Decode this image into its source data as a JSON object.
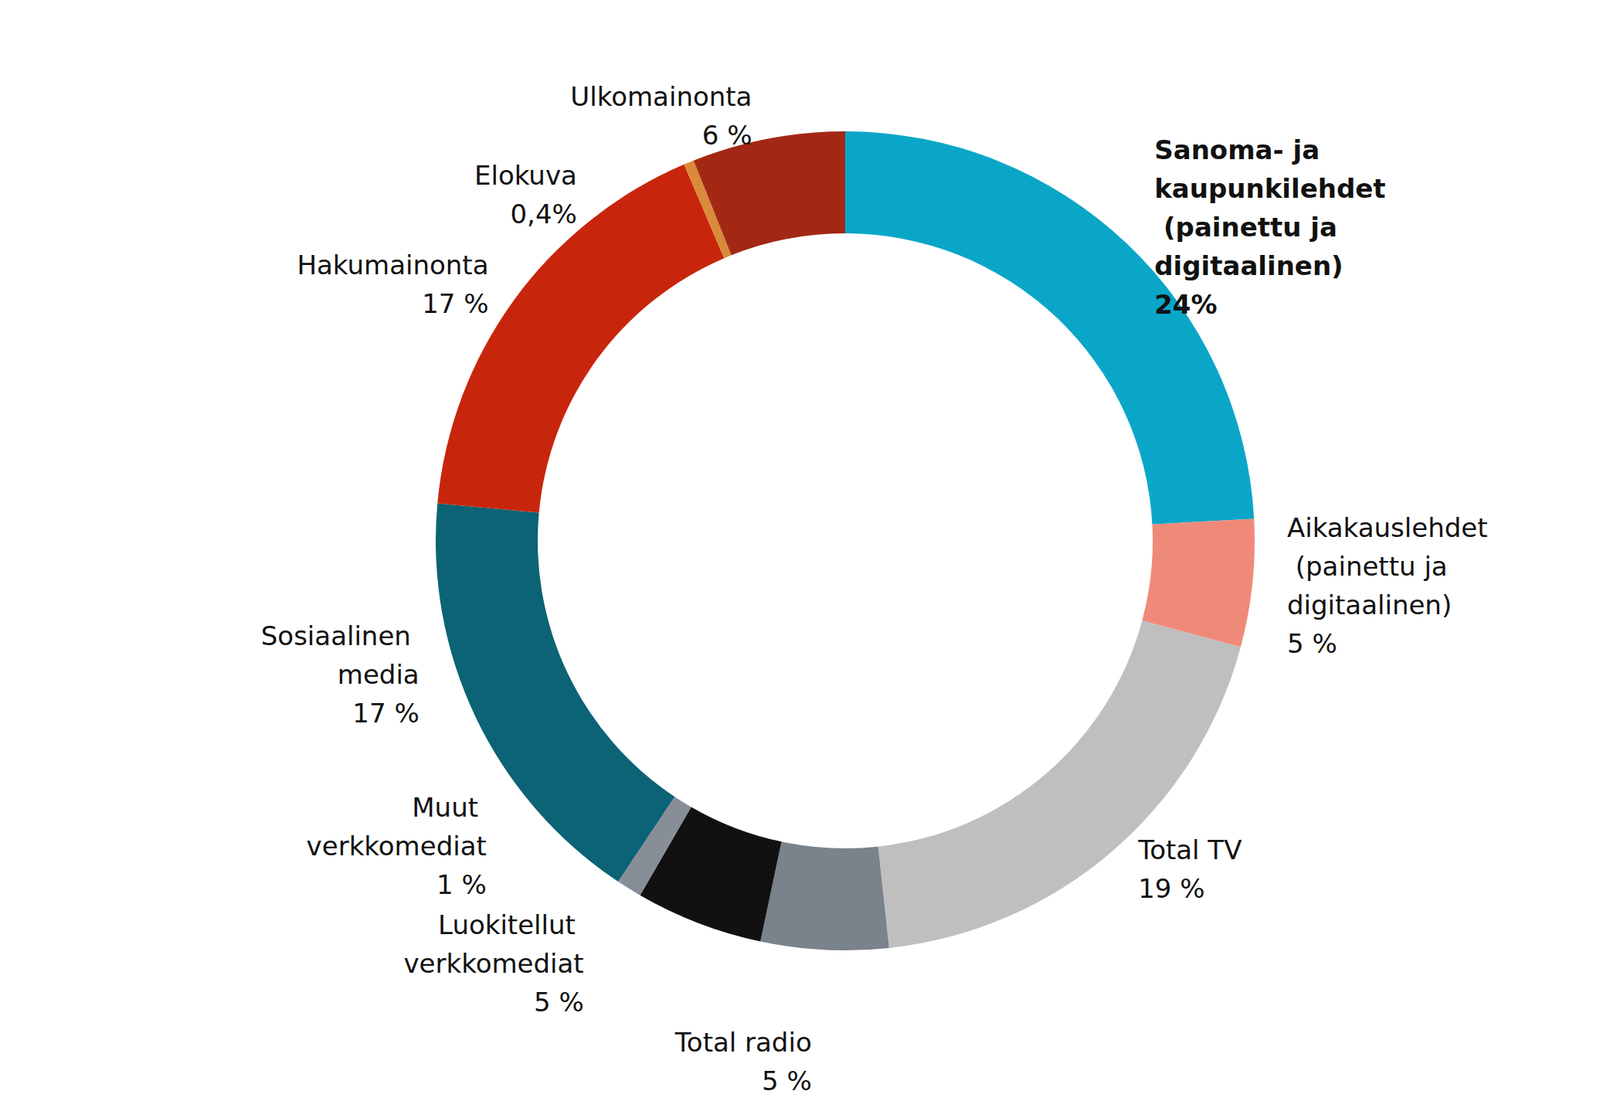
{
  "chart_data": {
    "type": "donut",
    "categories": [
      "Sanoma- ja kaupunkilehdet (painettu ja digitaalinen)",
      "Aikakauslehdet (painettu ja digitaalinen)",
      "Total TV",
      "Total radio",
      "Luokitellut verkkomediat",
      "Muut verkkomediat",
      "Sosiaalinen media",
      "Hakumainonta",
      "Elokuva",
      "Ulkomainonta"
    ],
    "values": [
      24,
      5,
      19,
      5,
      5,
      1,
      17,
      17,
      0.4,
      6
    ],
    "value_labels": [
      "24%",
      "5 %",
      "19 %",
      "5 %",
      "5 %",
      "1 %",
      "17 %",
      "17 %",
      "0,4%",
      "6 %"
    ],
    "colors": [
      "#0aa6c8",
      "#f08a78",
      "#bfbfbf",
      "#7a828b",
      "#111111",
      "#878e97",
      "#0b6375",
      "#c8260c",
      "#d98a3a",
      "#a32814"
    ],
    "data_labels": true
  }
}
